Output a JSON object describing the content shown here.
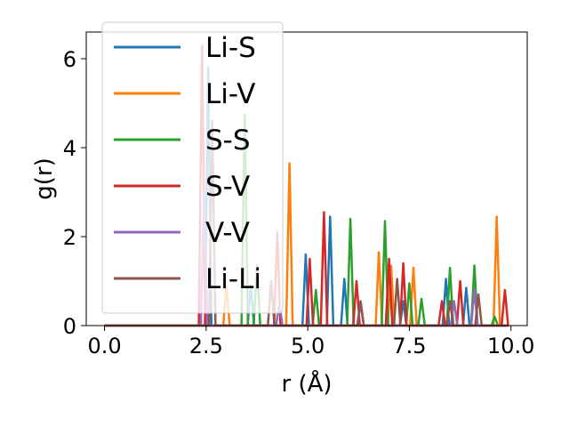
{
  "chart_data": {
    "type": "line",
    "title": "",
    "xlabel": "r (Å)",
    "ylabel": "g(r)",
    "xlim": [
      -0.45,
      10.4
    ],
    "ylim": [
      0,
      6.6
    ],
    "xticks": [
      "0.0",
      "2.5",
      "5.0",
      "7.5",
      "10.0"
    ],
    "yticks": [
      "0",
      "2",
      "4",
      "6"
    ],
    "grid": false,
    "legend_position": "top-left",
    "series": [
      {
        "name": "Li-S",
        "color": "#1f77b4",
        "peaks": [
          [
            2.55,
            5.8
          ],
          [
            3.6,
            0.9
          ],
          [
            4.95,
            1.6
          ],
          [
            5.55,
            2.45
          ],
          [
            5.9,
            1.05
          ],
          [
            7.35,
            0.55
          ],
          [
            8.4,
            1.05
          ],
          [
            8.9,
            0.85
          ]
        ]
      },
      {
        "name": "Li-V",
        "color": "#ff7f0e",
        "peaks": [
          [
            3.0,
            0.9
          ],
          [
            4.55,
            3.65
          ],
          [
            6.75,
            1.65
          ],
          [
            7.05,
            1.35
          ],
          [
            7.6,
            1.3
          ],
          [
            9.65,
            2.45
          ]
        ]
      },
      {
        "name": "S-S",
        "color": "#2ca02c",
        "peaks": [
          [
            3.45,
            4.75
          ],
          [
            3.75,
            1.35
          ],
          [
            5.2,
            0.8
          ],
          [
            6.05,
            2.4
          ],
          [
            6.9,
            2.35
          ],
          [
            7.5,
            0.95
          ],
          [
            7.8,
            0.6
          ],
          [
            8.5,
            1.3
          ],
          [
            9.1,
            1.35
          ],
          [
            9.6,
            0.2
          ]
        ]
      },
      {
        "name": "S-V",
        "color": "#d62728",
        "peaks": [
          [
            2.4,
            6.3
          ],
          [
            4.25,
            2.1
          ],
          [
            5.05,
            1.5
          ],
          [
            5.4,
            2.55
          ],
          [
            6.2,
            1.0
          ],
          [
            7.0,
            1.5
          ],
          [
            7.35,
            1.4
          ],
          [
            8.3,
            0.55
          ],
          [
            8.75,
            1.0
          ],
          [
            9.85,
            0.8
          ]
        ]
      },
      {
        "name": "V-V",
        "color": "#9467bd",
        "peaks": [
          [
            2.45,
            3.0
          ],
          [
            4.3,
            0.5
          ],
          [
            6.3,
            0.5
          ],
          [
            8.6,
            0.55
          ],
          [
            9.1,
            0.8
          ]
        ]
      },
      {
        "name": "Li-Li",
        "color": "#8c564b",
        "peaks": [
          [
            2.65,
            4.6
          ],
          [
            4.1,
            1.0
          ],
          [
            6.3,
            0.55
          ],
          [
            7.2,
            1.05
          ],
          [
            8.5,
            0.55
          ],
          [
            9.2,
            0.7
          ]
        ]
      }
    ]
  }
}
